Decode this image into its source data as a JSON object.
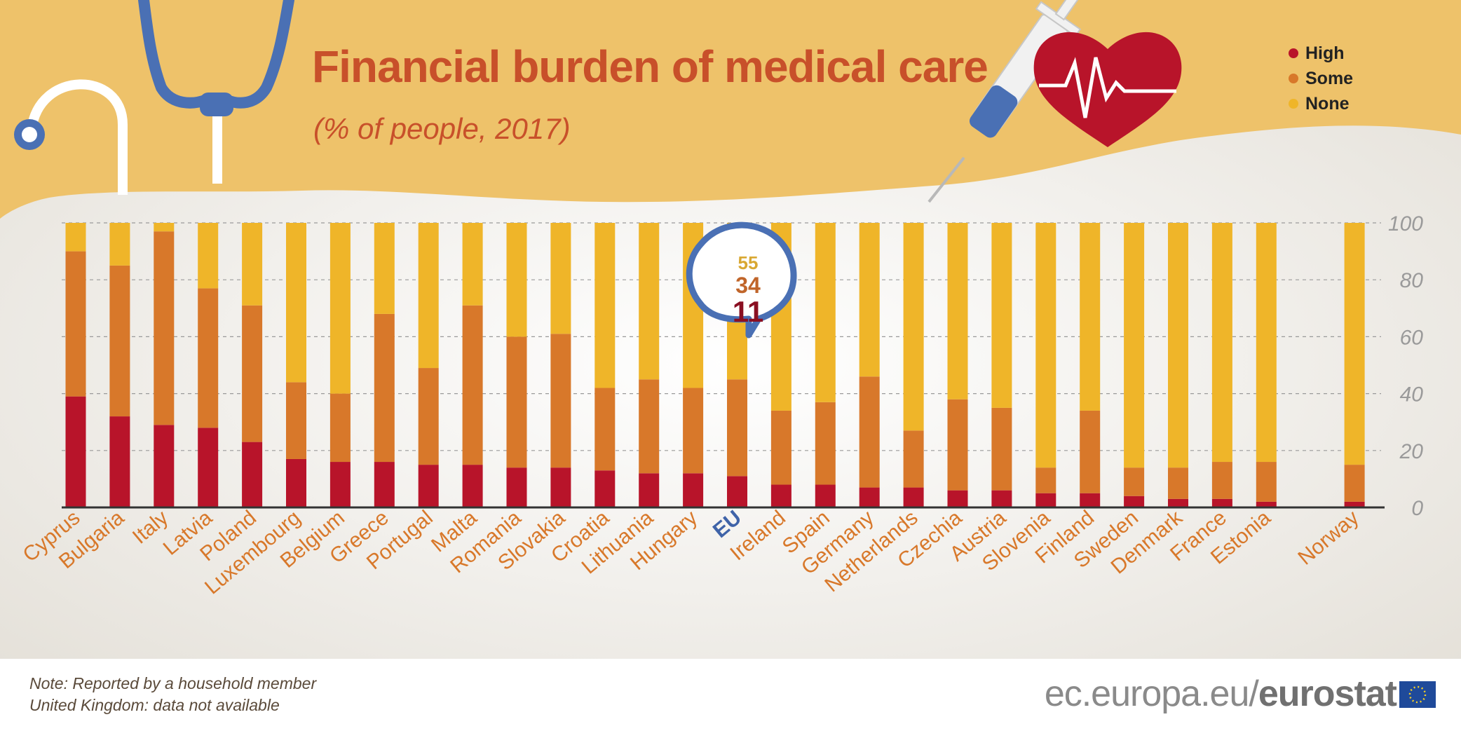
{
  "title": "Financial burden of medical care",
  "subtitle": "(% of people, 2017)",
  "legend": [
    {
      "label": "High",
      "color": "#b8142a"
    },
    {
      "label": "Some",
      "color": "#d8782a"
    },
    {
      "label": "None",
      "color": "#efb529"
    }
  ],
  "callout": {
    "none": "55",
    "some": "34",
    "high": "11"
  },
  "note": {
    "line1": "Note: Reported by a household member",
    "line2": "United Kingdom: data not available"
  },
  "brand": {
    "prefix": "ec.europa.eu/",
    "name": "eurostat"
  },
  "chart_data": {
    "type": "bar",
    "stacked": true,
    "orientation": "vertical",
    "categories": [
      "Cyprus",
      "Bulgaria",
      "Italy",
      "Latvia",
      "Poland",
      "Luxembourg",
      "Belgium",
      "Greece",
      "Portugal",
      "Malta",
      "Romania",
      "Slovakia",
      "Croatia",
      "Lithuania",
      "Hungary",
      "EU",
      "Ireland",
      "Spain",
      "Germany",
      "Netherlands",
      "Czechia",
      "Austria",
      "Slovenia",
      "Finland",
      "Sweden",
      "Denmark",
      "France",
      "Estonia",
      "",
      "Norway"
    ],
    "highlight_category": "EU",
    "series": [
      {
        "name": "High",
        "color": "#b8142a",
        "values": [
          39,
          32,
          29,
          28,
          23,
          17,
          16,
          16,
          15,
          15,
          14,
          14,
          13,
          12,
          12,
          11,
          8,
          8,
          7,
          7,
          6,
          6,
          5,
          5,
          4,
          3,
          3,
          2,
          null,
          2
        ]
      },
      {
        "name": "Some",
        "color": "#d8782a",
        "values": [
          51,
          53,
          68,
          49,
          48,
          27,
          24,
          52,
          34,
          56,
          46,
          47,
          29,
          33,
          30,
          34,
          26,
          29,
          39,
          20,
          32,
          29,
          9,
          29,
          10,
          11,
          13,
          14,
          null,
          13
        ]
      },
      {
        "name": "None",
        "color": "#efb529",
        "values": [
          10,
          15,
          3,
          23,
          29,
          56,
          60,
          32,
          51,
          29,
          40,
          39,
          58,
          55,
          58,
          55,
          66,
          63,
          54,
          73,
          62,
          65,
          86,
          66,
          86,
          86,
          84,
          84,
          null,
          85
        ]
      }
    ],
    "ylim": [
      0,
      100
    ],
    "yticks": [
      0,
      20,
      40,
      60,
      80,
      100
    ],
    "grid": true
  }
}
